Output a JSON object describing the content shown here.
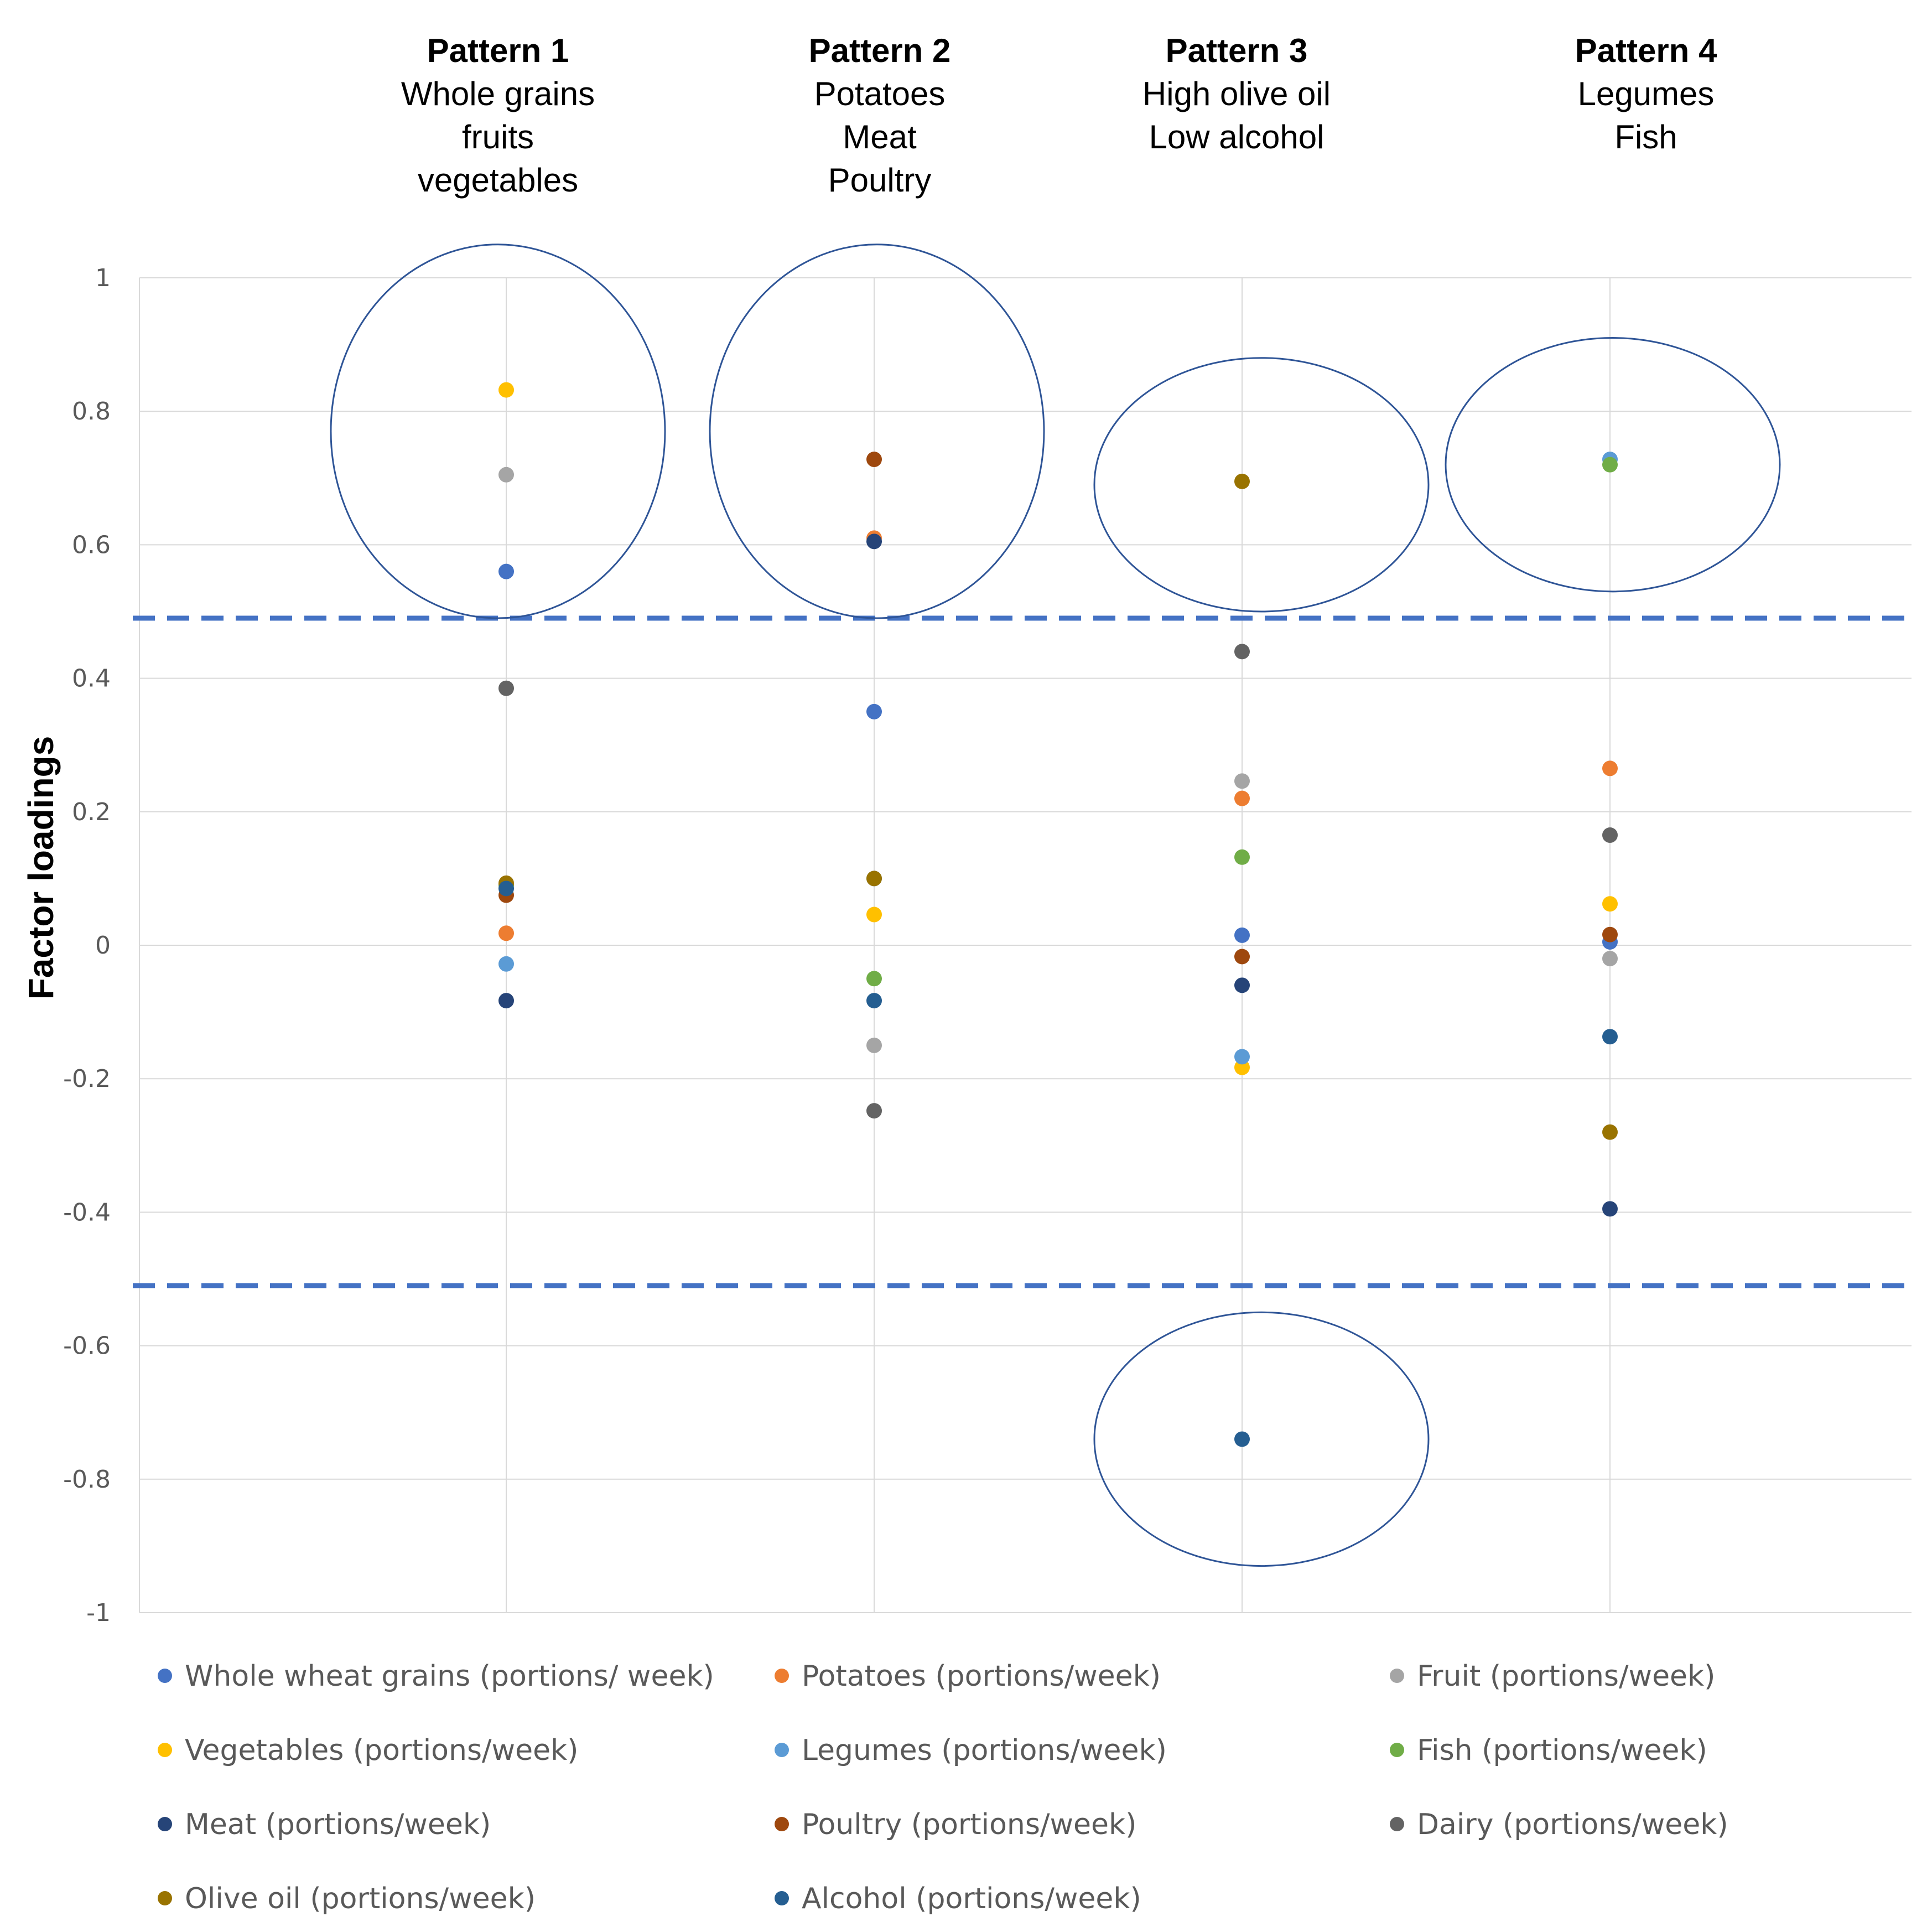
{
  "chart_data": {
    "type": "scatter",
    "ylabel": "Factor loadings",
    "ylim": [
      -1,
      1
    ],
    "yticks": [
      "1",
      "0.8",
      "0.6",
      "0.4",
      "0.2",
      "0",
      "-0.2",
      "-0.4",
      "-0.6",
      "-0.8",
      "-1"
    ],
    "grid": true,
    "legend_position": "bottom",
    "threshold_lines": [
      0.49,
      -0.51
    ],
    "patterns": [
      {
        "title": "Pattern 1",
        "lines": [
          "Whole grains",
          "fruits",
          "vegetables"
        ]
      },
      {
        "title": "Pattern 2",
        "lines": [
          "Potatoes",
          "Meat",
          "Poultry"
        ]
      },
      {
        "title": "Pattern 3",
        "lines": [
          "High olive oil",
          "Low alcohol"
        ]
      },
      {
        "title": "Pattern 4",
        "lines": [
          "Legumes",
          "Fish"
        ]
      }
    ],
    "highlight_circles": [
      {
        "pattern": 1,
        "center": 0.77,
        "half_range": 0.28
      },
      {
        "pattern": 2,
        "center": 0.77,
        "half_range": 0.28
      },
      {
        "pattern": 3,
        "center": 0.69,
        "half_range": 0.19
      },
      {
        "pattern": 3,
        "center": -0.74,
        "half_range": 0.19
      },
      {
        "pattern": 4,
        "center": 0.72,
        "half_range": 0.19
      }
    ],
    "series": [
      {
        "name": "Whole wheat grains (portions/ week)",
        "color": "#4472C4",
        "values": [
          0.56,
          0.35,
          0.015,
          0.005
        ]
      },
      {
        "name": "Potatoes (portions/week)",
        "color": "#ED7D31",
        "values": [
          0.018,
          0.61,
          0.22,
          0.265
        ]
      },
      {
        "name": "Fruit (portions/week)",
        "color": "#A5A5A5",
        "values": [
          0.705,
          -0.15,
          0.246,
          -0.02
        ]
      },
      {
        "name": "Vegetables (portions/week)",
        "color": "#FFC000",
        "values": [
          0.832,
          0.046,
          -0.183,
          0.062
        ]
      },
      {
        "name": "Legumes (portions/week)",
        "color": "#5B9BD5",
        "values": [
          -0.028,
          0.1,
          -0.167,
          0.728
        ]
      },
      {
        "name": "Fish (portions/week)",
        "color": "#70AD47",
        "values": [
          0.09,
          -0.05,
          0.132,
          0.72
        ]
      },
      {
        "name": "Meat (portions/week)",
        "color": "#264478",
        "values": [
          -0.083,
          0.605,
          -0.06,
          -0.395
        ]
      },
      {
        "name": "Poultry (portions/week)",
        "color": "#9E480E",
        "values": [
          0.075,
          0.728,
          -0.017,
          0.016
        ]
      },
      {
        "name": "Dairy (portions/week)",
        "color": "#636363",
        "values": [
          0.385,
          -0.248,
          0.44,
          0.165
        ]
      },
      {
        "name": "Olive oil (portions/week)",
        "color": "#997300",
        "values": [
          0.093,
          0.1,
          0.695,
          -0.28
        ]
      },
      {
        "name": "Alcohol (portions/week)",
        "color": "#255E91",
        "values": [
          0.085,
          -0.083,
          -0.74,
          -0.137
        ]
      }
    ]
  }
}
